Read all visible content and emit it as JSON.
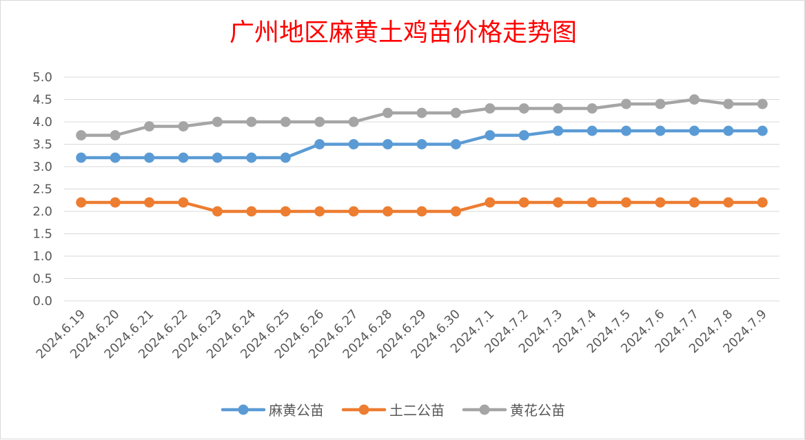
{
  "chart_data": {
    "type": "line",
    "title": "广州地区麻黄土鸡苗价格走势图",
    "xlabel": "",
    "ylabel": "",
    "ylim": [
      0,
      5
    ],
    "ytick_labels": [
      "0.0",
      "0.5",
      "1.0",
      "1.5",
      "2.0",
      "2.5",
      "3.0",
      "3.5",
      "4.0",
      "4.5",
      "5.0"
    ],
    "categories": [
      "2024.6.19",
      "2024.6.20",
      "2024.6.21",
      "2024.6.22",
      "2024.6.23",
      "2024.6.24",
      "2024.6.25",
      "2024.6.26",
      "2024.6.27",
      "2024.6.28",
      "2024.6.29",
      "2024.6.30",
      "2024.7.1",
      "2024.7.2",
      "2024.7.3",
      "2024.7.4",
      "2024.7.5",
      "2024.7.6",
      "2024.7.7",
      "2024.7.8",
      "2024.7.9"
    ],
    "series": [
      {
        "name": "麻黄公苗",
        "color": "#5b9bd5",
        "values": [
          3.2,
          3.2,
          3.2,
          3.2,
          3.2,
          3.2,
          3.2,
          3.5,
          3.5,
          3.5,
          3.5,
          3.5,
          3.7,
          3.7,
          3.8,
          3.8,
          3.8,
          3.8,
          3.8,
          3.8,
          3.8
        ]
      },
      {
        "name": "土二公苗",
        "color": "#ed7d31",
        "values": [
          2.2,
          2.2,
          2.2,
          2.2,
          2.0,
          2.0,
          2.0,
          2.0,
          2.0,
          2.0,
          2.0,
          2.0,
          2.2,
          2.2,
          2.2,
          2.2,
          2.2,
          2.2,
          2.2,
          2.2,
          2.2
        ]
      },
      {
        "name": "黄花公苗",
        "color": "#a5a5a5",
        "values": [
          3.7,
          3.7,
          3.9,
          3.9,
          4.0,
          4.0,
          4.0,
          4.0,
          4.0,
          4.2,
          4.2,
          4.2,
          4.3,
          4.3,
          4.3,
          4.3,
          4.4,
          4.4,
          4.5,
          4.4,
          4.4
        ]
      }
    ],
    "grid": true,
    "legend_position": "bottom"
  }
}
